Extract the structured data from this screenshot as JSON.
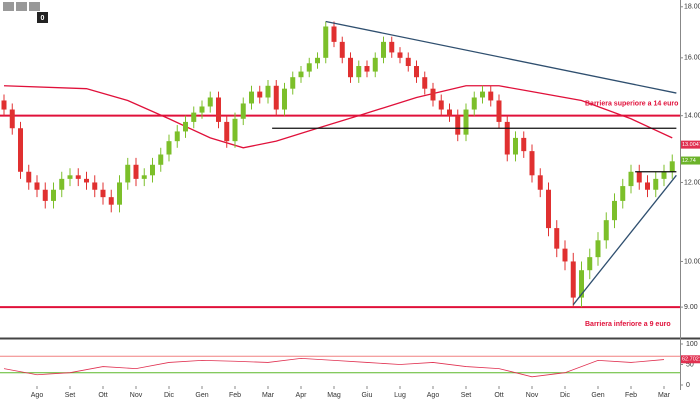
{
  "badge": "0",
  "chart_data": {
    "type": "candlestick",
    "categories": [
      null,
      null,
      null,
      null,
      "Ago",
      null,
      null,
      null,
      "Set",
      null,
      null,
      null,
      "Ott",
      null,
      null,
      null,
      "Nov",
      null,
      null,
      null,
      "Dic",
      null,
      null,
      null,
      "Gen",
      null,
      null,
      null,
      "Feb",
      null,
      null,
      null,
      "Mar",
      null,
      null,
      null,
      "Apr",
      null,
      null,
      null,
      "Mag",
      null,
      null,
      null,
      "Giu",
      null,
      null,
      null,
      "Lug",
      null,
      null,
      null,
      "Ago",
      null,
      null,
      null,
      "Set",
      null,
      null,
      null,
      "Ott",
      null,
      null,
      null,
      "Nov",
      null,
      null,
      null,
      "Dic",
      null,
      null,
      null,
      "Gen",
      null,
      null,
      null,
      "Feb",
      null,
      null,
      null,
      "Mar",
      null
    ],
    "open": [
      14.5,
      14.2,
      13.6,
      12.3,
      12.0,
      11.8,
      11.5,
      11.8,
      12.1,
      12.2,
      12.1,
      12.0,
      11.8,
      11.6,
      11.4,
      12.0,
      12.5,
      12.1,
      12.2,
      12.5,
      12.8,
      13.2,
      13.5,
      13.8,
      14.1,
      14.3,
      14.6,
      13.8,
      13.2,
      13.9,
      14.4,
      14.8,
      14.6,
      15.0,
      14.2,
      14.9,
      15.3,
      15.5,
      15.8,
      16.0,
      17.2,
      16.6,
      16.0,
      15.3,
      15.7,
      15.5,
      16.0,
      16.6,
      16.2,
      16.0,
      15.7,
      15.3,
      14.9,
      14.5,
      14.2,
      14.0,
      13.4,
      14.2,
      14.6,
      14.8,
      14.5,
      13.8,
      12.8,
      13.3,
      12.9,
      12.2,
      11.8,
      10.8,
      10.3,
      10.0,
      9.2,
      9.8,
      10.1,
      10.5,
      11.0,
      11.5,
      11.9,
      12.3,
      12.0,
      11.8,
      12.1,
      12.3
    ],
    "high": [
      14.7,
      14.4,
      13.8,
      12.5,
      12.2,
      12.0,
      12.0,
      12.3,
      12.4,
      12.4,
      12.3,
      12.2,
      12.0,
      11.8,
      12.2,
      12.7,
      12.7,
      12.4,
      12.7,
      13.0,
      13.4,
      13.7,
      14.0,
      14.3,
      14.5,
      14.8,
      14.8,
      14.0,
      14.1,
      14.6,
      15.0,
      15.0,
      15.2,
      15.2,
      15.1,
      15.5,
      15.7,
      16.0,
      16.2,
      17.4,
      17.4,
      16.8,
      16.2,
      15.9,
      15.9,
      16.2,
      16.8,
      16.8,
      16.4,
      16.2,
      15.9,
      15.5,
      15.1,
      14.7,
      14.4,
      14.2,
      14.4,
      14.8,
      15.0,
      15.0,
      14.7,
      14.0,
      13.5,
      13.5,
      13.1,
      12.4,
      12.0,
      11.0,
      10.5,
      10.2,
      10.0,
      10.3,
      10.7,
      11.2,
      11.7,
      12.1,
      12.5,
      12.5,
      12.2,
      12.3,
      12.5,
      12.8
    ],
    "low": [
      14.0,
      13.4,
      12.1,
      11.8,
      11.6,
      11.3,
      11.3,
      11.6,
      11.9,
      11.9,
      11.8,
      11.6,
      11.4,
      11.2,
      11.2,
      11.8,
      11.9,
      11.9,
      12.0,
      12.3,
      12.6,
      13.0,
      13.3,
      13.6,
      13.9,
      14.1,
      13.6,
      13.0,
      13.0,
      13.7,
      14.2,
      14.4,
      14.4,
      14.0,
      14.0,
      14.7,
      15.1,
      15.3,
      15.6,
      15.8,
      16.4,
      15.8,
      15.1,
      15.1,
      15.3,
      15.3,
      15.8,
      16.0,
      15.8,
      15.5,
      15.1,
      14.7,
      14.3,
      14.0,
      13.8,
      13.2,
      13.2,
      14.0,
      14.4,
      14.3,
      13.6,
      12.6,
      12.6,
      12.7,
      12.0,
      11.6,
      10.6,
      10.1,
      9.8,
      9.0,
      9.0,
      9.6,
      9.9,
      10.3,
      10.8,
      11.3,
      11.7,
      11.8,
      11.6,
      11.6,
      11.9,
      12.1
    ],
    "close": [
      14.2,
      13.6,
      12.3,
      12.0,
      11.8,
      11.5,
      11.8,
      12.1,
      12.2,
      12.1,
      12.0,
      11.8,
      11.6,
      11.4,
      12.0,
      12.5,
      12.1,
      12.2,
      12.5,
      12.8,
      13.2,
      13.5,
      13.8,
      14.1,
      14.3,
      14.6,
      13.8,
      13.2,
      13.9,
      14.4,
      14.8,
      14.6,
      15.0,
      14.2,
      14.9,
      15.3,
      15.5,
      15.8,
      16.0,
      17.2,
      16.6,
      16.0,
      15.3,
      15.7,
      15.5,
      16.0,
      16.6,
      16.2,
      16.0,
      15.7,
      15.3,
      14.9,
      14.5,
      14.2,
      14.0,
      13.4,
      14.2,
      14.6,
      14.8,
      14.5,
      13.8,
      12.8,
      13.3,
      12.9,
      12.2,
      11.8,
      10.8,
      10.3,
      10.0,
      9.2,
      9.8,
      10.1,
      10.5,
      11.0,
      11.5,
      11.9,
      12.3,
      12.0,
      11.8,
      12.1,
      12.3,
      12.6
    ],
    "up_color": "#7cbf2a",
    "down_color": "#e03030",
    "log_scale": true,
    "ylim": [
      8.4,
      18.2
    ],
    "yticks": [
      {
        "value": 9,
        "label": "9.00"
      },
      {
        "value": 10,
        "label": "10.00"
      },
      {
        "value": 12,
        "label": "12.00"
      },
      {
        "value": 14,
        "label": "14.00"
      },
      {
        "value": 16,
        "label": "16.00"
      },
      {
        "value": 18,
        "label": "18.00"
      }
    ],
    "moving_average": {
      "color": "#e0103a",
      "x": [
        0,
        10,
        15,
        20,
        25,
        29,
        33,
        38,
        43,
        50,
        56,
        60,
        64,
        70,
        76,
        81
      ],
      "values": [
        15.0,
        14.9,
        14.5,
        13.9,
        13.3,
        13.0,
        13.2,
        13.6,
        14.0,
        14.6,
        15.0,
        15.0,
        14.8,
        14.5,
        13.9,
        13.3
      ]
    },
    "levels": [
      {
        "value": 14,
        "label": "Barriera superiore a 14 euro"
      },
      {
        "value": 9,
        "label": "Barriera inferiore a 9 euro"
      }
    ],
    "level_color": "#e0103a",
    "supports": [
      {
        "value": 13.6,
        "from": 32.5,
        "to": 81.5
      },
      {
        "value": 12.3,
        "from": 76.5,
        "to": 81.5
      }
    ],
    "trendlines": [
      {
        "color": "#2f4f6f",
        "x": [
          39,
          81.5
        ],
        "values": [
          17.4,
          14.75
        ]
      },
      {
        "color": "#2f4f6f",
        "x": [
          69,
          81.5
        ],
        "values": [
          9.05,
          12.2
        ]
      }
    ],
    "price_tags": [
      {
        "value": 13.0047,
        "label": "13.0047",
        "color": "#e03050"
      },
      {
        "value": 12.74,
        "label": "12.74",
        "color": "#6cb32a"
      }
    ],
    "rsi": {
      "color": "#e03050",
      "x": [
        0,
        4,
        8,
        12,
        16,
        20,
        24,
        28,
        32,
        36,
        40,
        44,
        48,
        52,
        56,
        60,
        64,
        68,
        72,
        76,
        80
      ],
      "values": [
        40,
        25,
        30,
        45,
        40,
        55,
        60,
        58,
        55,
        65,
        60,
        55,
        50,
        55,
        45,
        40,
        20,
        30,
        60,
        55,
        62
      ],
      "ylim": [
        0,
        100
      ],
      "yticks": [
        0,
        50,
        100
      ],
      "upper": 70,
      "lower": 30,
      "upper_color": "#f08080",
      "lower_color": "#5cb82a",
      "tag": {
        "value": 62.7021,
        "label": "62.7021"
      }
    }
  }
}
